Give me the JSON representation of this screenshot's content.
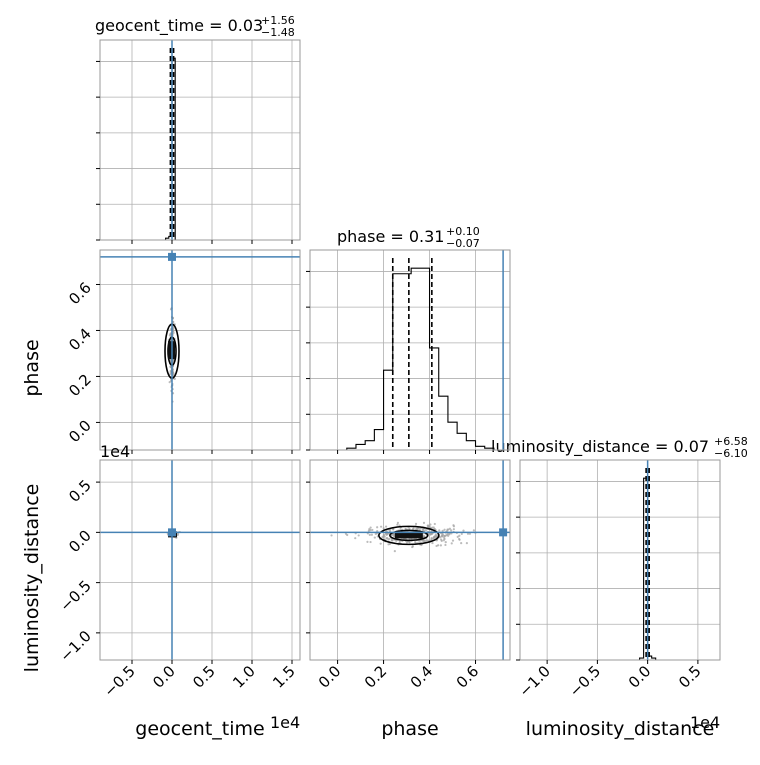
{
  "chart_data": {
    "type": "corner",
    "parameters": [
      "geocent_time",
      "phase",
      "luminosity_distance"
    ],
    "axis_labels": [
      "geocent_time",
      "phase",
      "luminosity_distance"
    ],
    "titles": [
      {
        "base": "geocent_time = 0.03",
        "plus": "+1.56",
        "minus": "−1.48"
      },
      {
        "base": "phase = 0.31",
        "plus": "+0.10",
        "minus": "−0.07"
      },
      {
        "base": "luminosity_distance = 0.07",
        "plus": "+6.58",
        "minus": "−6.10"
      }
    ],
    "offset_text": "1e4",
    "ranges": {
      "geocent_time": [
        -0.9,
        1.6
      ],
      "phase": [
        -0.12,
        0.75
      ],
      "luminosity_distance": [
        -1.27,
        0.72
      ]
    },
    "ticks": {
      "geocent_time": [
        "−0.5",
        "0.0",
        "0.5",
        "1.0",
        "1.5"
      ],
      "phase": [
        "0.0",
        "0.2",
        "0.4",
        "0.6"
      ],
      "luminosity_distance": [
        "−1.0",
        "−0.5",
        "0.0",
        "0.5"
      ]
    },
    "tick_values": {
      "geocent_time": [
        -0.5,
        0.0,
        0.5,
        1.0,
        1.5
      ],
      "phase": [
        0.0,
        0.2,
        0.4,
        0.6
      ],
      "luminosity_distance": [
        -1.0,
        -0.5,
        0.0,
        0.5
      ]
    },
    "truths": {
      "geocent_time": 0.0,
      "phase": 0.72,
      "luminosity_distance": 0.0
    },
    "quantiles": {
      "geocent_time": [
        -0.02,
        0.0,
        0.02
      ],
      "phase": [
        0.24,
        0.31,
        0.41
      ],
      "luminosity_distance": [
        -0.015,
        0.0,
        0.015
      ]
    },
    "hist_geocent_time": {
      "edges": [
        -0.12,
        -0.08,
        -0.04,
        0.0,
        0.04,
        0.08,
        0.12
      ],
      "counts": [
        0.0,
        0.01,
        0.02,
        1.0,
        0.0,
        0.0
      ]
    },
    "hist_phase": {
      "edges": [
        0.0,
        0.04,
        0.08,
        0.12,
        0.16,
        0.2,
        0.24,
        0.28,
        0.32,
        0.36,
        0.4,
        0.44,
        0.48,
        0.52,
        0.56,
        0.6,
        0.64,
        0.68,
        0.72
      ],
      "counts": [
        0.0,
        0.01,
        0.03,
        0.05,
        0.11,
        0.43,
        0.95,
        0.95,
        0.98,
        0.98,
        0.55,
        0.29,
        0.15,
        0.09,
        0.05,
        0.02,
        0.01,
        0.0
      ]
    },
    "hist_luminosity_distance": {
      "edges": [
        -0.16,
        -0.12,
        -0.08,
        -0.04,
        0.0,
        0.04,
        0.08,
        0.12
      ],
      "counts": [
        0.0,
        0.0,
        0.01,
        0.93,
        0.02,
        0.01,
        0.0
      ]
    },
    "grid": true,
    "colors": {
      "truth": "#4682b4",
      "hist": "#000000",
      "points": "#a0a0a0",
      "grid": "#b0b0b0"
    }
  }
}
